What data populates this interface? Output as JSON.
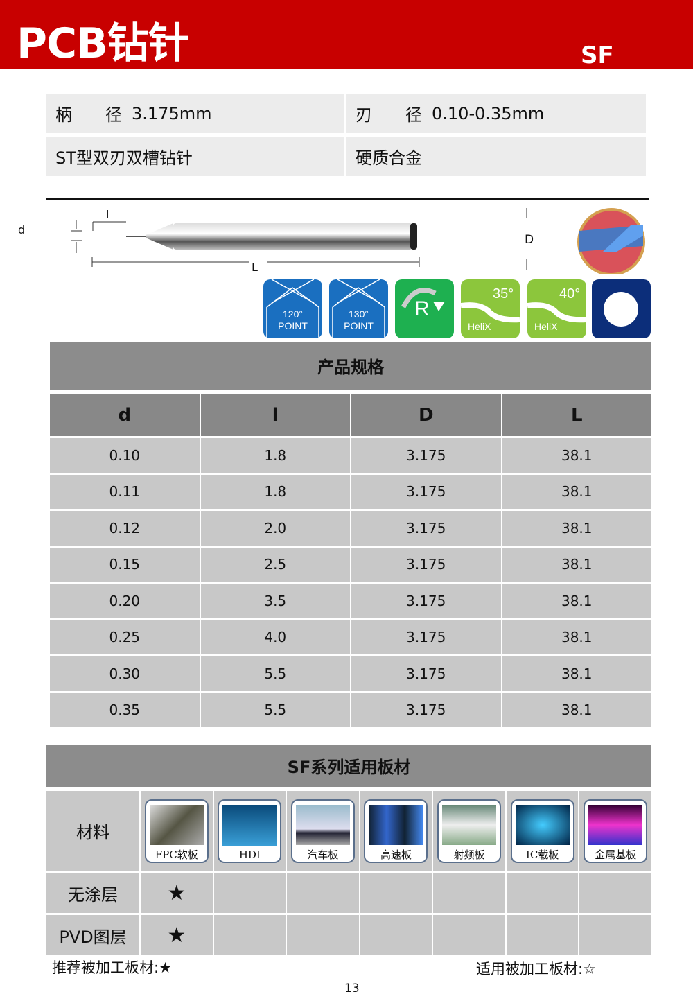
{
  "header": {
    "title": "PCB钻针",
    "series": "SF"
  },
  "info": {
    "shank_label": "柄　　径",
    "shank_value": "3.175mm",
    "blade_label": "刃　　径",
    "blade_value": "0.10-0.35mm",
    "type": "ST型双刃双槽钻针",
    "material": "硬质合金"
  },
  "diagram": {
    "d": "d",
    "l": "l",
    "L": "L",
    "D": "D"
  },
  "icons": [
    {
      "name": "point-120",
      "line1": "120°",
      "line2": "POINT"
    },
    {
      "name": "point-130",
      "line1": "130°",
      "line2": "POINT"
    },
    {
      "name": "radius",
      "line1": "R"
    },
    {
      "name": "helix-35",
      "line1": "35°",
      "line2": "HeliX"
    },
    {
      "name": "helix-40",
      "line1": "40°",
      "line2": "HeliX"
    },
    {
      "name": "round-shank"
    }
  ],
  "colors": {
    "brand_red": "#c80000",
    "table_header": "#888888",
    "table_cell": "#c8c8c8"
  },
  "spec": {
    "title": "产品规格",
    "columns": [
      "d",
      "l",
      "D",
      "L"
    ],
    "rows": [
      [
        "0.10",
        "1.8",
        "3.175",
        "38.1"
      ],
      [
        "0.11",
        "1.8",
        "3.175",
        "38.1"
      ],
      [
        "0.12",
        "2.0",
        "3.175",
        "38.1"
      ],
      [
        "0.15",
        "2.5",
        "3.175",
        "38.1"
      ],
      [
        "0.20",
        "3.5",
        "3.175",
        "38.1"
      ],
      [
        "0.25",
        "4.0",
        "3.175",
        "38.1"
      ],
      [
        "0.30",
        "5.5",
        "3.175",
        "38.1"
      ],
      [
        "0.35",
        "5.5",
        "3.175",
        "38.1"
      ]
    ]
  },
  "materials": {
    "title": "SF系列适用板材",
    "row_label": "材料",
    "items": [
      "FPC软板",
      "HDI",
      "汽车板",
      "高速板",
      "射频板",
      "IC载板",
      "金属基板"
    ],
    "coatings": [
      {
        "label": "无涂层",
        "marks": [
          "★",
          "",
          "",
          "",
          "",
          "",
          ""
        ]
      },
      {
        "label": "PVD图层",
        "marks": [
          "★",
          "",
          "",
          "",
          "",
          "",
          ""
        ]
      }
    ]
  },
  "footer": {
    "recommended": "推荐被加工板材:★",
    "applicable": "适用被加工板材:☆",
    "page": "13"
  }
}
